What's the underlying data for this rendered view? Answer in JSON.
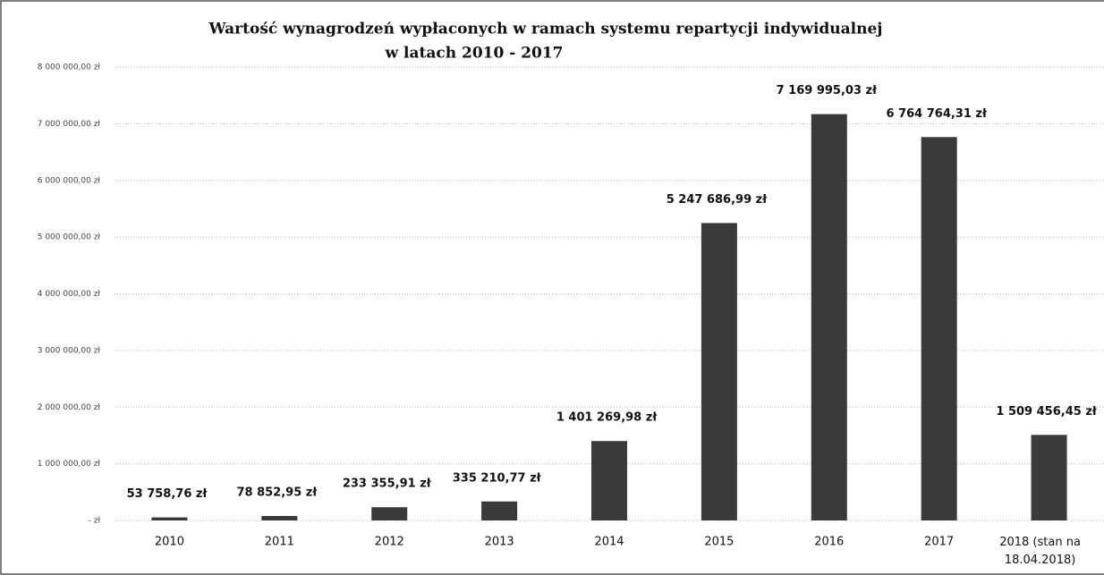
{
  "chart_data": {
    "type": "bar",
    "title": "Wartość wynagrodzeń wypłaconych w ramach systemu repartycji indywidualnej",
    "subtitle": "w latach 2010 - 2017",
    "categories": [
      "2010",
      "2011",
      "2012",
      "2013",
      "2014",
      "2015",
      "2016",
      "2017",
      "2018 (stan na 18.04.2018)"
    ],
    "values": [
      53758.76,
      78852.95,
      233355.91,
      335210.77,
      1401269.98,
      5247686.99,
      7169995.03,
      6764764.31,
      1509456.45
    ],
    "value_labels": [
      "53 758,76 zł",
      "78 852,95 zł",
      "233 355,91 zł",
      "335 210,77 zł",
      "1 401 269,98 zł",
      "5 247 686,99 zł",
      "7 169 995,03 zł",
      "6 764 764,31 zł",
      "1 509 456,45 zł"
    ],
    "color": "#3a3a3a",
    "ylim": [
      0,
      8000000
    ],
    "yticks": [
      {
        "value": 0,
        "label": "- zł"
      },
      {
        "value": 1000000,
        "label": "1 000 000,00 zł"
      },
      {
        "value": 2000000,
        "label": "2 000 000,00 zł"
      },
      {
        "value": 3000000,
        "label": "3 000 000,00 zł"
      },
      {
        "value": 4000000,
        "label": "4 000 000,00 zł"
      },
      {
        "value": 5000000,
        "label": "5 000 000,00 zł"
      },
      {
        "value": 6000000,
        "label": "6 000 000,00 zł"
      },
      {
        "value": 7000000,
        "label": "7 000 000,00 zł"
      },
      {
        "value": 8000000,
        "label": "8 000 000,00 zł"
      }
    ],
    "grid": true
  }
}
